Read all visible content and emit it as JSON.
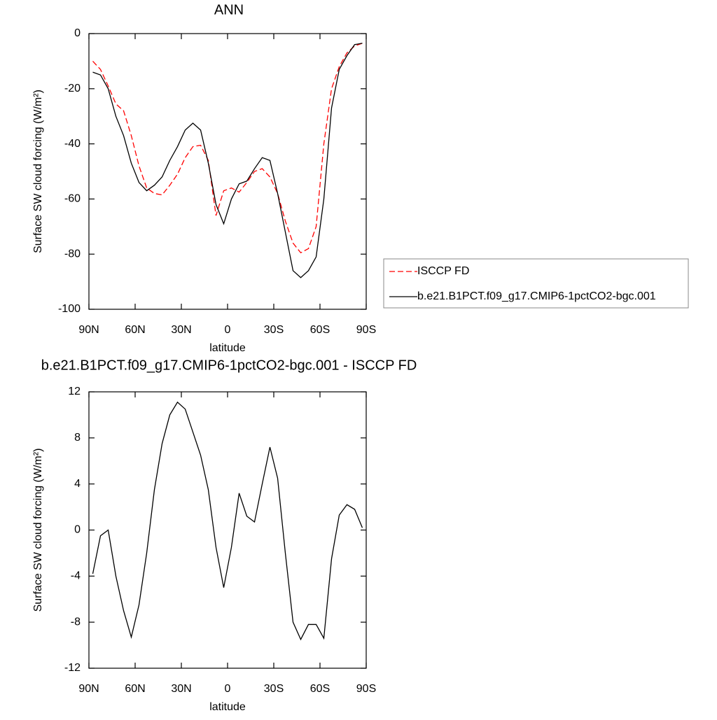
{
  "chart_data": [
    {
      "type": "line",
      "title": "ANN",
      "xlabel": "latitude",
      "ylabel": "Surface SW cloud forcing (W/m²)",
      "x": [
        87.5,
        82.5,
        77.5,
        72.5,
        67.5,
        62.5,
        57.5,
        52.5,
        47.5,
        42.5,
        37.5,
        32.5,
        27.5,
        22.5,
        17.5,
        12.5,
        7.5,
        2.5,
        -2.5,
        -7.5,
        -12.5,
        -17.5,
        -22.5,
        -27.5,
        -32.5,
        -37.5,
        -42.5,
        -47.5,
        -52.5,
        -57.5,
        -62.5,
        -67.5,
        -72.5,
        -77.5,
        -82.5,
        -87.5
      ],
      "series": [
        {
          "name": "ISCCP FD",
          "color": "#ff0000",
          "line_style": "dashed",
          "values": [
            -10,
            -13,
            -19,
            -25.5,
            -28,
            -37,
            -48,
            -56,
            -58,
            -58.5,
            -55,
            -51,
            -45,
            -41,
            -40.5,
            -46,
            -66,
            -57,
            -56,
            -57.5,
            -54,
            -50,
            -49,
            -52,
            -58,
            -68,
            -76,
            -79.5,
            -78,
            -70,
            -40,
            -20,
            -12,
            -7,
            -4.5,
            -3.5
          ]
        },
        {
          "name": "b.e21.B1PCT.f09_g17.CMIP6-1pctCO2-bgc.001",
          "color": "#000000",
          "line_style": "solid",
          "values": [
            -14,
            -15,
            -20,
            -30,
            -37,
            -47,
            -54,
            -57,
            -55,
            -52,
            -46,
            -41,
            -35,
            -32.5,
            -35,
            -47,
            -62,
            -69,
            -60,
            -54.5,
            -53.5,
            -49,
            -45,
            -46,
            -58,
            -72,
            -86,
            -88.5,
            -86,
            -81,
            -60,
            -27,
            -13,
            -8,
            -4,
            -3.5
          ]
        }
      ],
      "xlim": [
        90,
        -90
      ],
      "xticks": [
        {
          "value": 90,
          "label": "90N"
        },
        {
          "value": 60,
          "label": "60N"
        },
        {
          "value": 30,
          "label": "30N"
        },
        0,
        {
          "value": -30,
          "label": "30S"
        },
        {
          "value": -60,
          "label": "60S"
        },
        {
          "value": -90,
          "label": "90S"
        }
      ],
      "ylim": [
        -100,
        0
      ],
      "yticks": [
        0,
        -20,
        -40,
        -60,
        -80,
        -100
      ],
      "legend": "right"
    },
    {
      "type": "line",
      "title": "b.e21.B1PCT.f09_g17.CMIP6-1pctCO2-bgc.001 - ISCCP FD",
      "xlabel": "latitude",
      "ylabel": "Surface SW cloud forcing (W/m²)",
      "x": [
        87.5,
        82.5,
        77.5,
        72.5,
        67.5,
        62.5,
        57.5,
        52.5,
        47.5,
        42.5,
        37.5,
        32.5,
        27.5,
        22.5,
        17.5,
        12.5,
        7.5,
        2.5,
        -2.5,
        -7.5,
        -12.5,
        -17.5,
        -22.5,
        -27.5,
        -32.5,
        -37.5,
        -42.5,
        -47.5,
        -52.5,
        -57.5,
        -62.5,
        -67.5,
        -72.5,
        -77.5,
        -82.5,
        -87.5
      ],
      "values": [
        -3.8,
        -0.5,
        0,
        -4,
        -7,
        -9.3,
        -6.5,
        -2,
        3.5,
        7.5,
        10,
        11.1,
        10.5,
        8.5,
        6.5,
        3.5,
        -1.5,
        -5,
        -1.5,
        3.2,
        1.2,
        0.7,
        4,
        7.2,
        4.5,
        -2,
        -8,
        -9.5,
        -8.2,
        -8.2,
        -9.4,
        -2.5,
        1.3,
        2.2,
        1.8,
        0.2
      ],
      "color": "#000000",
      "xlim": [
        90,
        -90
      ],
      "xticks": [
        {
          "value": 90,
          "label": "90N"
        },
        {
          "value": 60,
          "label": "60N"
        },
        {
          "value": 30,
          "label": "30N"
        },
        0,
        {
          "value": -30,
          "label": "30S"
        },
        {
          "value": -60,
          "label": "60S"
        },
        {
          "value": -90,
          "label": "90S"
        }
      ],
      "ylim": [
        -12,
        12
      ],
      "yticks": [
        12,
        8,
        4,
        0,
        -4,
        -8,
        -12
      ]
    }
  ]
}
